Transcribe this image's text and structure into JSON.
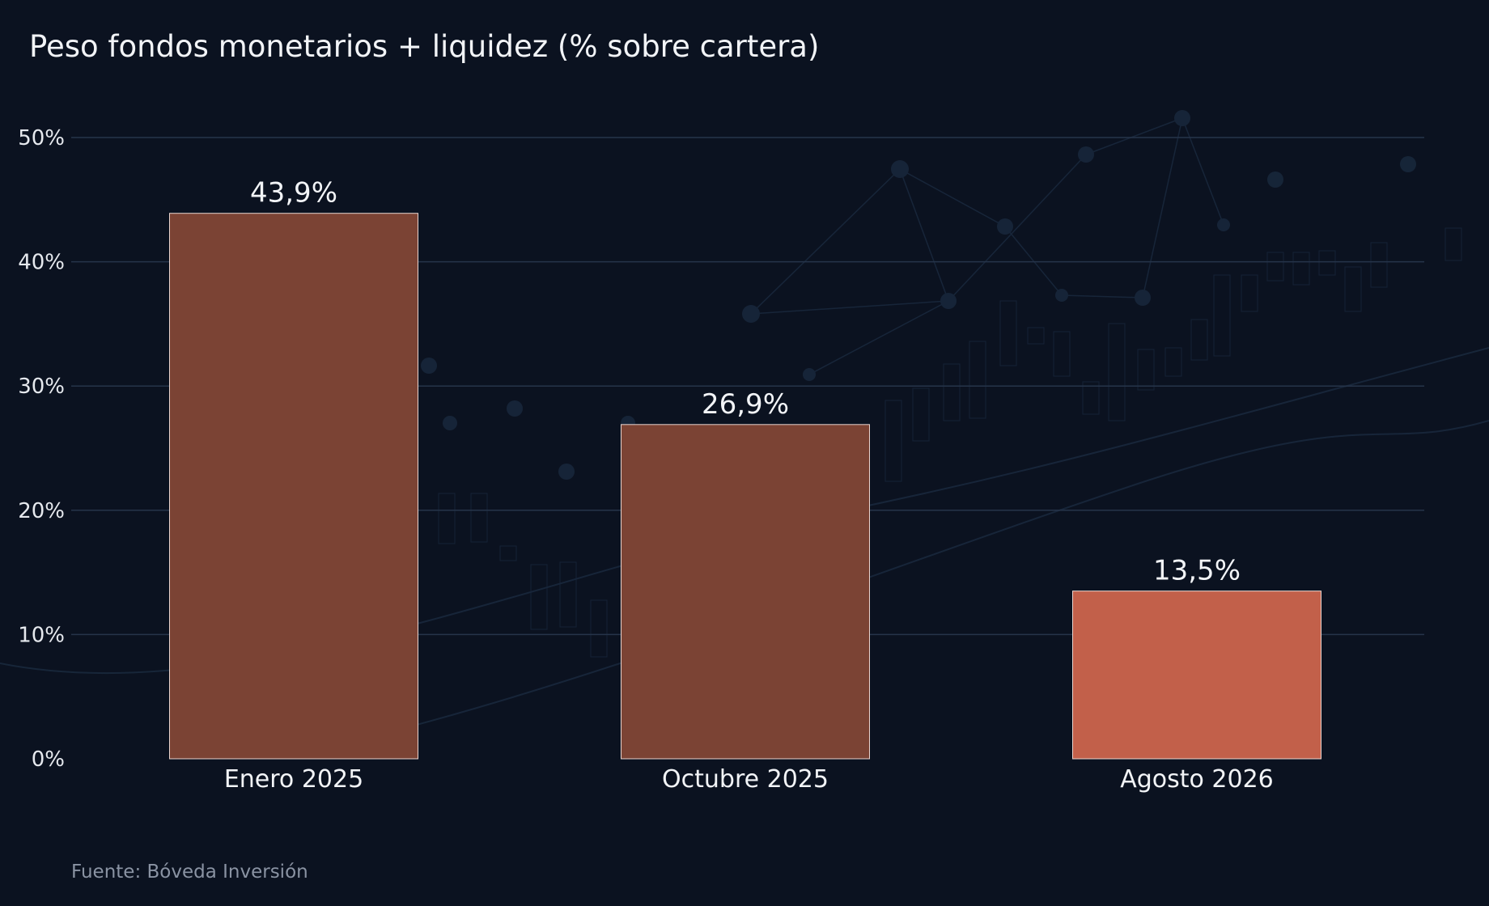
{
  "chart_data": {
    "type": "bar",
    "title": "Peso fondos monetarios + liquidez (% sobre cartera)",
    "categories": [
      "Enero 2025",
      "Octubre 2025",
      "Agosto 2026"
    ],
    "values": [
      43.9,
      26.9,
      13.5
    ],
    "value_labels": [
      "43,9%",
      "26,9%",
      "13,5%"
    ],
    "bar_colors": [
      "#7b4334",
      "#7b4334",
      "#c2604a"
    ],
    "ylim": [
      0,
      50
    ],
    "yticks": [
      0,
      10,
      20,
      30,
      40,
      50
    ],
    "ytick_labels": [
      "0%",
      "10%",
      "20%",
      "30%",
      "40%",
      "50%"
    ],
    "xlabel": "",
    "ylabel": "",
    "grid": "horizontal",
    "legend": "none",
    "source": "Fuente: Bóveda Inversión"
  },
  "colors": {
    "background": "#0b1220",
    "gridline": "#26344a",
    "text": "#f2f4f7",
    "source_text": "#8a93a3"
  }
}
